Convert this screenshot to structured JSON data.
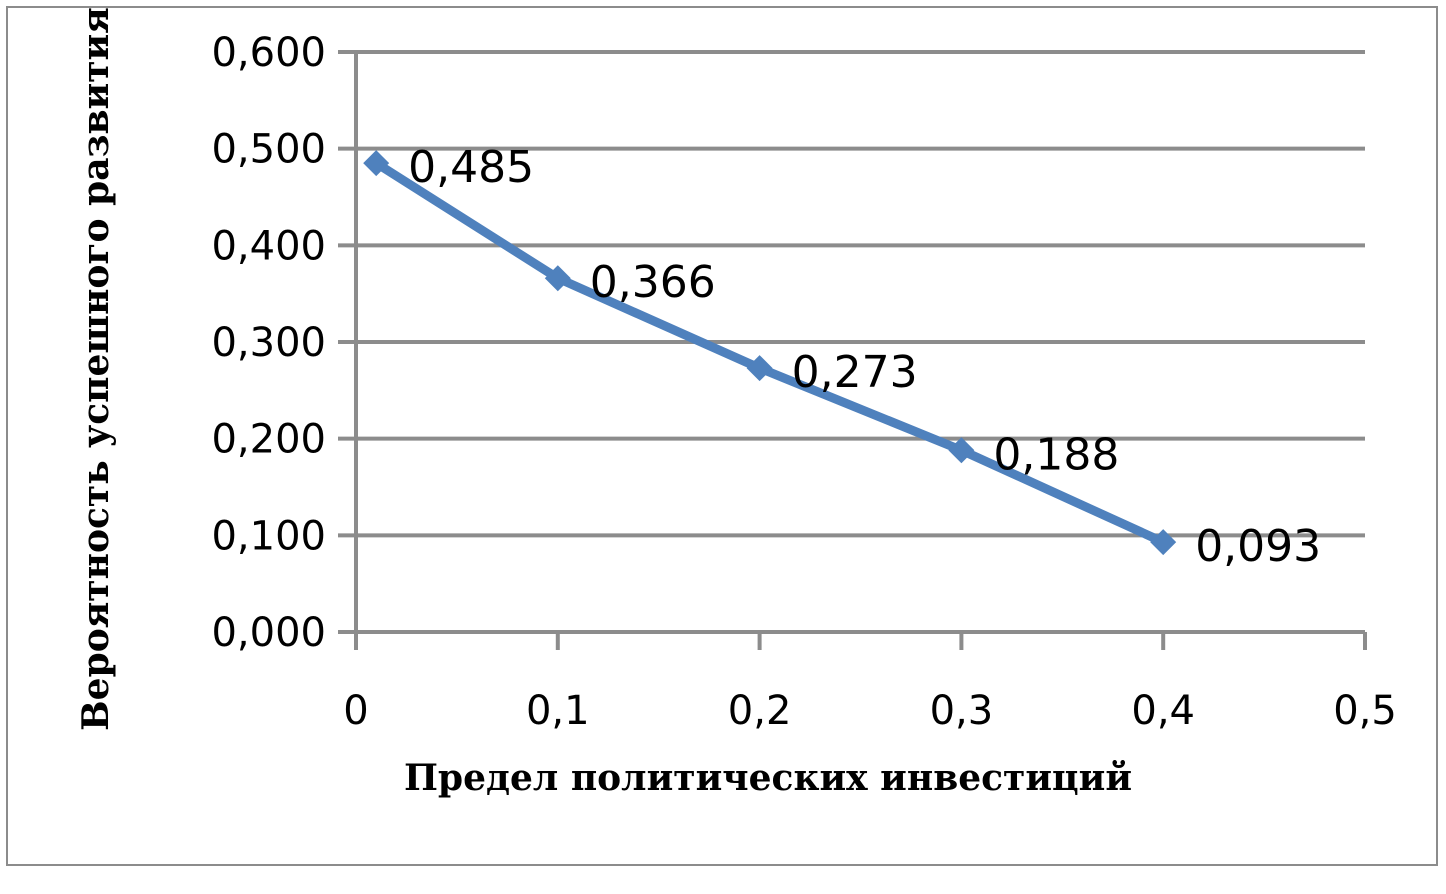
{
  "chart_data": {
    "type": "line",
    "xlabel": "Предел политических инвестиций",
    "ylabel": "Вероятность успешного развития",
    "xlim": [
      0,
      0.5
    ],
    "ylim": [
      0,
      0.6
    ],
    "x_ticks": [
      "0",
      "0,1",
      "0,2",
      "0,3",
      "0,4",
      "0,5"
    ],
    "x_tick_values": [
      0,
      0.1,
      0.2,
      0.3,
      0.4,
      0.5
    ],
    "y_ticks": [
      "0,000",
      "0,100",
      "0,200",
      "0,300",
      "0,400",
      "0,500",
      "0,600"
    ],
    "y_tick_values": [
      0,
      0.1,
      0.2,
      0.3,
      0.4,
      0.5,
      0.6
    ],
    "grid": true,
    "legend": "none",
    "series": [
      {
        "x": [
          0.01,
          0.1,
          0.2,
          0.3,
          0.4
        ],
        "values": [
          0.485,
          0.366,
          0.273,
          0.188,
          0.093
        ],
        "labels": [
          "0,485",
          "0,366",
          "0,273",
          "0,188",
          "0,093"
        ],
        "color": "#4f81bd"
      }
    ],
    "colors": {
      "grid": "#8c8c8c",
      "line": "#4f81bd"
    }
  }
}
